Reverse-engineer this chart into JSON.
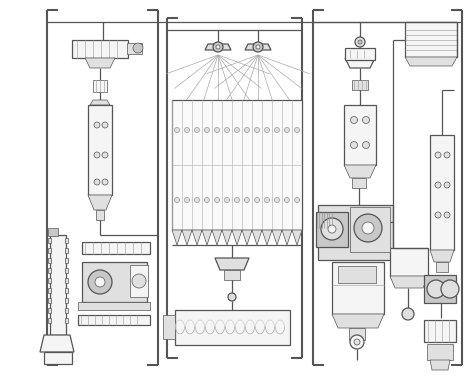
{
  "bg_color": "#ffffff",
  "lc": "#555555",
  "fl": "#f5f5f5",
  "fm": "#e0e0e0",
  "fd": "#c8c8c8",
  "lw_frame": 1.5,
  "lw_main": 0.9,
  "lw_thin": 0.5
}
